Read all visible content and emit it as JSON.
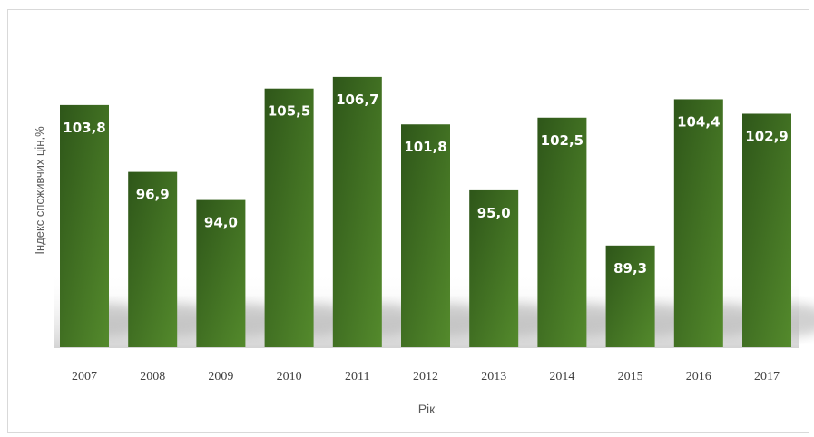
{
  "chart_data": {
    "type": "bar",
    "categories": [
      "2007",
      "2008",
      "2009",
      "2010",
      "2011",
      "2012",
      "2013",
      "2014",
      "2015",
      "2016",
      "2017"
    ],
    "values": [
      103.8,
      96.9,
      94.0,
      105.5,
      106.7,
      101.8,
      95.0,
      102.5,
      89.3,
      104.4,
      102.9
    ],
    "data_labels": [
      "103,8",
      "96,9",
      "94,0",
      "105,5",
      "106,7",
      "101,8",
      "95,0",
      "102,5",
      "89,3",
      "104,4",
      "102,9"
    ],
    "title": "",
    "xlabel": "Рік",
    "ylabel": "Індекс споживчих цін,%",
    "ylim": [
      78.8,
      108.0
    ],
    "grid": false,
    "legend": "none",
    "bar_color_dark": "#2e5619",
    "bar_color_light": "#548a2c"
  }
}
